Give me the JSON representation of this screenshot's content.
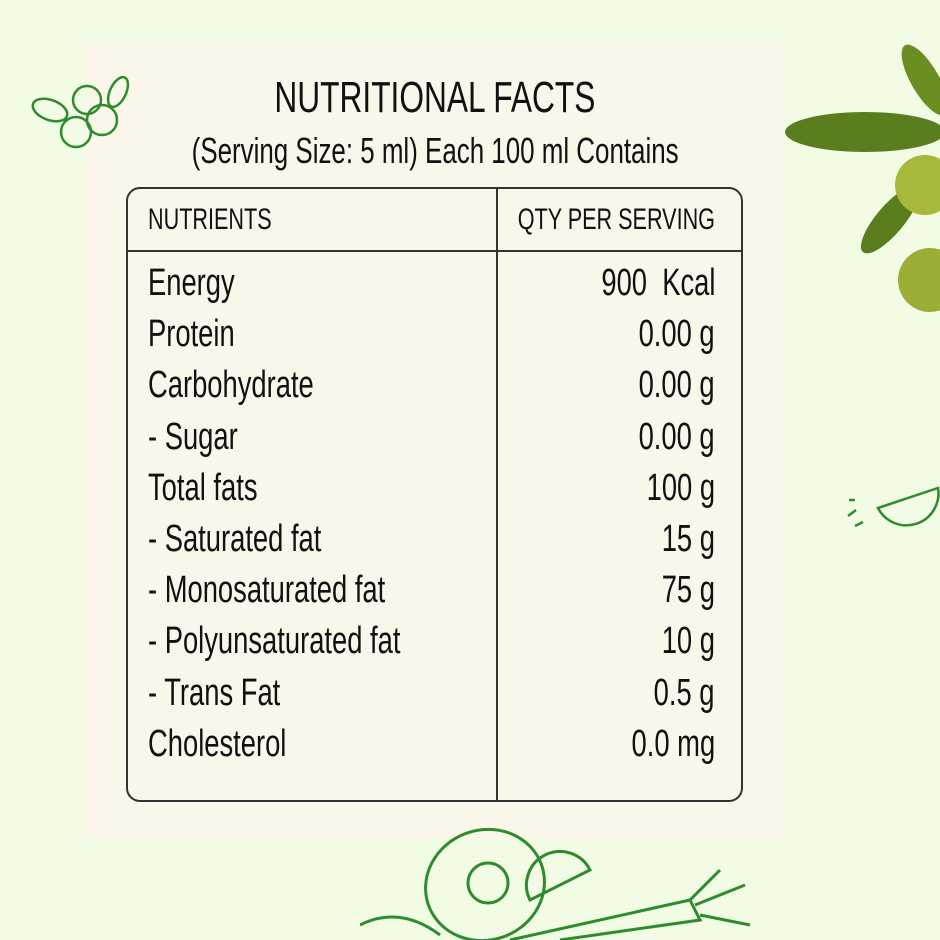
{
  "title": "NUTRITIONAL FACTS",
  "subtitle": "(Serving Size: 5 ml) Each 100 ml Contains",
  "table": {
    "headers": [
      "NUTRIENTS",
      "QTY PER SERVING"
    ],
    "rows": [
      {
        "name": "Energy",
        "value": "900  Kcal"
      },
      {
        "name": "Protein",
        "value": "0.00 g"
      },
      {
        "name": "Carbohydrate",
        "value": "0.00 g"
      },
      {
        "name": "- Sugar",
        "value": "0.00 g"
      },
      {
        "name": "Total fats",
        "value": "100 g"
      },
      {
        "name": "- Saturated fat",
        "value": "15 g"
      },
      {
        "name": "- Monosaturated fat",
        "value": "75 g"
      },
      {
        "name": "- Polyunsaturated fat",
        "value": "10 g"
      },
      {
        "name": "- Trans Fat",
        "value": "0.5 g"
      },
      {
        "name": "Cholesterol",
        "value": "0.0 mg"
      }
    ]
  },
  "colors": {
    "background": "#f2fbe3",
    "panel": "#fbf6ea",
    "illustration": "#2e8b2e",
    "olive_leaf": "#5a7d1e"
  }
}
